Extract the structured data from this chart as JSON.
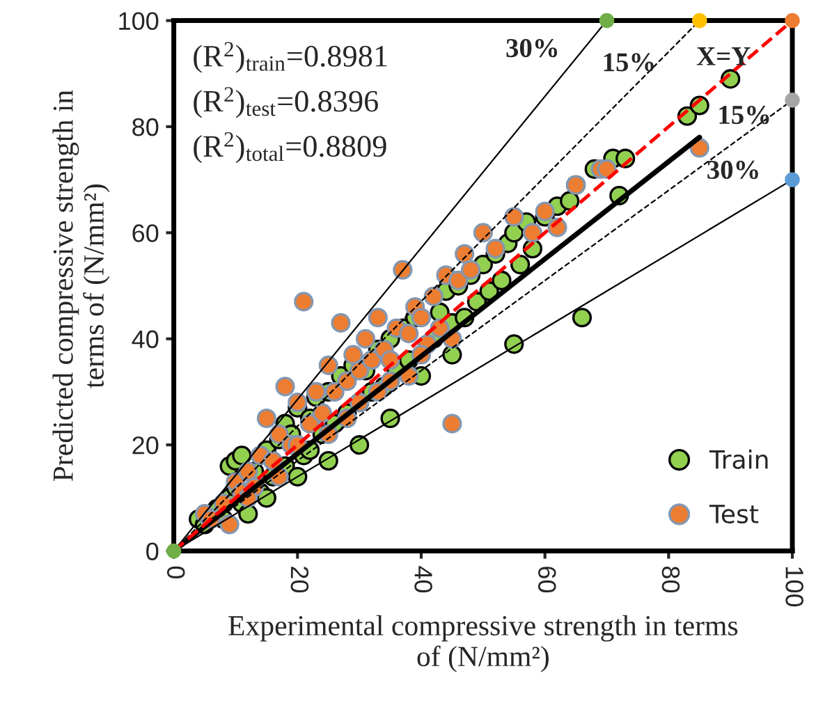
{
  "chart_data": {
    "type": "scatter",
    "xlabel": "Experimental compressive strength in terms\nof (N/mm²)",
    "ylabel": "Predicted compressive strength in\nterms of (N/mm²)",
    "xlim": [
      0,
      100
    ],
    "ylim": [
      0,
      100
    ],
    "xticks": [
      0,
      20,
      40,
      60,
      80,
      100
    ],
    "yticks": [
      0,
      20,
      40,
      60,
      80,
      100
    ],
    "grid": false,
    "legend": "bottom right",
    "marker": "circle",
    "series": [
      {
        "name": "Train",
        "color": "#92d050",
        "x": [
          4,
          5,
          7,
          8,
          9,
          9,
          10,
          10,
          11,
          11,
          12,
          13,
          14,
          15,
          16,
          17,
          18,
          18,
          19,
          20,
          21,
          22,
          22,
          23,
          24,
          25,
          26,
          27,
          28,
          29,
          30,
          31,
          32,
          33,
          34,
          35,
          36,
          37,
          38,
          39,
          42,
          43,
          44,
          45,
          46,
          47,
          48,
          49,
          50,
          51,
          52,
          53,
          54,
          55,
          56,
          57,
          58,
          60,
          62,
          64,
          65,
          66,
          55,
          68,
          71,
          73,
          72,
          83,
          85,
          90,
          35,
          40,
          45,
          30,
          25,
          20,
          15
        ],
        "values": [
          6,
          5,
          8,
          6,
          10,
          16,
          17,
          12,
          18,
          9,
          7,
          15,
          11,
          19,
          14,
          21,
          16,
          24,
          22,
          27,
          18,
          25,
          19,
          29,
          22,
          30,
          24,
          33,
          26,
          35,
          28,
          34,
          30,
          38,
          31,
          40,
          34,
          42,
          36,
          44,
          40,
          45,
          49,
          43,
          50,
          44,
          52,
          47,
          54,
          49,
          56,
          51,
          58,
          60,
          54,
          62,
          57,
          63,
          65,
          66,
          69,
          44,
          39,
          72,
          74,
          74,
          67,
          82,
          84,
          89,
          25,
          33,
          37,
          20,
          17,
          14,
          10
        ]
      },
      {
        "name": "Test",
        "color": "#ed7d31",
        "x": [
          5,
          6,
          8,
          9,
          10,
          11,
          12,
          13,
          14,
          15,
          16,
          17,
          18,
          19,
          20,
          21,
          22,
          23,
          24,
          25,
          26,
          27,
          28,
          29,
          30,
          31,
          32,
          33,
          34,
          35,
          36,
          37,
          38,
          39,
          40,
          41,
          42,
          43,
          44,
          45,
          46,
          47,
          48,
          50,
          52,
          55,
          58,
          60,
          62,
          65,
          69,
          70,
          85,
          20,
          25,
          30,
          35,
          40,
          45,
          33,
          28,
          17,
          12,
          38
        ],
        "values": [
          7,
          6,
          9,
          5,
          13,
          11,
          15,
          12,
          18,
          25,
          17,
          22,
          31,
          20,
          28,
          47,
          24,
          30,
          26,
          35,
          30,
          43,
          32,
          37,
          34,
          40,
          36,
          44,
          38,
          36,
          42,
          53,
          41,
          46,
          44,
          39,
          48,
          42,
          52,
          24,
          51,
          56,
          53,
          60,
          57,
          63,
          60,
          64,
          61,
          69,
          72,
          72,
          76,
          20,
          22,
          28,
          32,
          37,
          40,
          30,
          25,
          14,
          10,
          33
        ]
      },
      {
        "type": "line",
        "color": "#000000",
        "x": [
          0,
          70
        ],
        "values": [
          0,
          100
        ],
        "line_style": "solid",
        "marker": "none"
      },
      {
        "type": "line",
        "color": "#000000",
        "x": [
          0,
          85
        ],
        "values": [
          0,
          100
        ],
        "line_style": "dashed",
        "marker": "none"
      },
      {
        "type": "line",
        "color": "#000000",
        "x": [
          0,
          100
        ],
        "values": [
          0,
          85
        ],
        "line_style": "dashed",
        "marker": "none"
      },
      {
        "type": "line",
        "color": "#000000",
        "x": [
          0,
          100
        ],
        "values": [
          0,
          70
        ],
        "line_style": "solid",
        "marker": "none"
      },
      {
        "type": "line",
        "color": "#000000",
        "x": [
          0,
          85
        ],
        "values": [
          0,
          78
        ],
        "line_style": "solid",
        "marker": "none"
      },
      {
        "type": "line",
        "color": "#ff0000",
        "x": [
          0,
          100
        ],
        "values": [
          0,
          100
        ],
        "line_style": "dashed",
        "marker": "none"
      },
      {
        "x": [
          0,
          70,
          85,
          100,
          100,
          100
        ],
        "values": [
          0,
          100,
          100,
          100,
          85,
          70
        ],
        "colors": [
          "#70ad47",
          "#70ad47",
          "#ffc000",
          "#ed7d31",
          "#a5a5a5",
          "#5b9bd5"
        ]
      }
    ],
    "annotations": [
      "(R$^{2}$)$_{train}$=0.8981",
      "(R$^{2}$)$_{test}$=0.8396",
      "(R$^{2}$)$_{total}$=0.8809",
      {
        "text": "30%",
        "x": 63,
        "y": 90
      },
      {
        "text": "15%",
        "x": 73.6,
        "y": 86.6
      },
      {
        "text": "X=Y",
        "x": 87,
        "y": 87
      },
      {
        "text": "15%",
        "x": 91,
        "y": 77.4
      },
      {
        "text": "30%",
        "x": 90.5,
        "y": 63.4
      }
    ]
  }
}
